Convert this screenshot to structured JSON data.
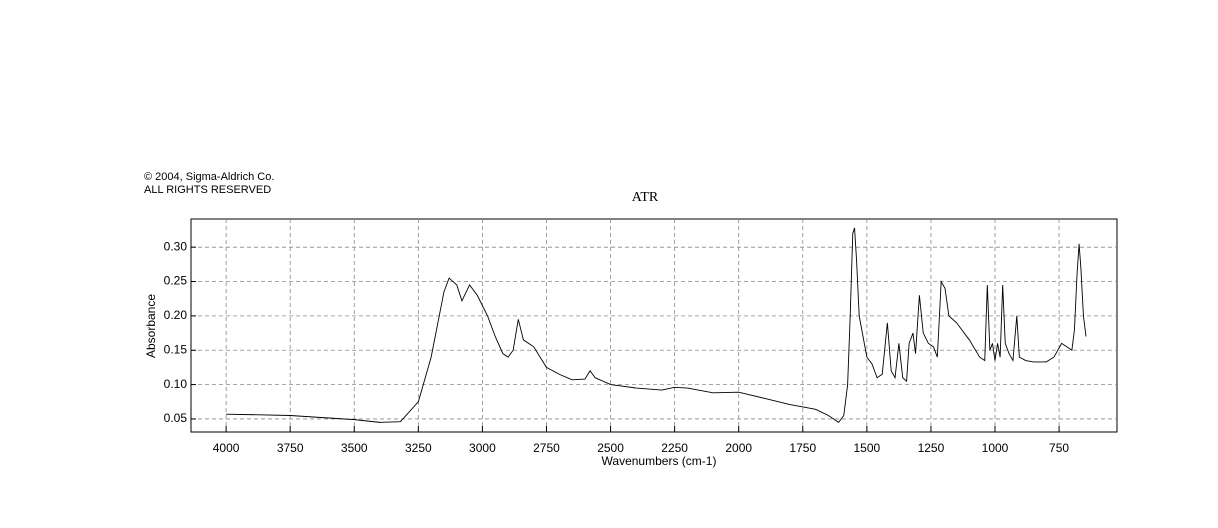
{
  "chart_data": {
    "type": "line",
    "title": "ATR",
    "annotations": [
      "© 2004, Sigma-Aldrich Co.",
      "ALL RIGHTS RESERVED"
    ],
    "x_label": "Wavenumbers (cm-1)",
    "y_label": "Absorbance",
    "xlim": [
      4137,
      524
    ],
    "ylim": [
      0.031,
      0.341
    ],
    "xticks": [
      4000,
      3750,
      3500,
      3250,
      3000,
      2750,
      2500,
      2250,
      2000,
      1750,
      1500,
      1250,
      1000,
      750
    ],
    "yticks": [
      0.05,
      {
        "value": 0.1,
        "label": "0.10"
      },
      0.15,
      {
        "value": 0.2,
        "label": "0.20"
      },
      0.25,
      {
        "value": 0.3,
        "label": "0.30"
      }
    ],
    "grid": true,
    "series": [
      {
        "color": "#000000",
        "x": [
          4000,
          3750,
          3500,
          3400,
          3320,
          3250,
          3200,
          3150,
          3130,
          3100,
          3080,
          3050,
          3020,
          2980,
          2950,
          2920,
          2900,
          2880,
          2860,
          2840,
          2800,
          2750,
          2700,
          2650,
          2600,
          2580,
          2560,
          2500,
          2400,
          2300,
          2250,
          2200,
          2100,
          2000,
          1900,
          1800,
          1700,
          1650,
          1610,
          1590,
          1575,
          1565,
          1555,
          1548,
          1540,
          1530,
          1515,
          1500,
          1490,
          1480,
          1460,
          1440,
          1420,
          1405,
          1390,
          1375,
          1360,
          1345,
          1335,
          1320,
          1310,
          1295,
          1280,
          1260,
          1240,
          1225,
          1210,
          1195,
          1180,
          1150,
          1100,
          1060,
          1040,
          1030,
          1020,
          1010,
          1000,
          990,
          980,
          970,
          960,
          945,
          930,
          915,
          905,
          880,
          850,
          800,
          770,
          740,
          720,
          700,
          690,
          680,
          672,
          665,
          655,
          645
        ],
        "values": [
          0.057,
          0.055,
          0.049,
          0.045,
          0.046,
          0.075,
          0.14,
          0.235,
          0.255,
          0.245,
          0.222,
          0.245,
          0.23,
          0.2,
          0.17,
          0.145,
          0.14,
          0.15,
          0.195,
          0.165,
          0.155,
          0.125,
          0.115,
          0.107,
          0.108,
          0.12,
          0.11,
          0.1,
          0.095,
          0.092,
          0.096,
          0.095,
          0.088,
          0.089,
          0.08,
          0.071,
          0.064,
          0.055,
          0.045,
          0.055,
          0.1,
          0.2,
          0.32,
          0.328,
          0.28,
          0.2,
          0.17,
          0.14,
          0.135,
          0.13,
          0.11,
          0.115,
          0.19,
          0.12,
          0.11,
          0.16,
          0.11,
          0.105,
          0.16,
          0.175,
          0.145,
          0.23,
          0.175,
          0.16,
          0.155,
          0.14,
          0.25,
          0.24,
          0.2,
          0.19,
          0.165,
          0.14,
          0.135,
          0.245,
          0.15,
          0.16,
          0.135,
          0.16,
          0.14,
          0.245,
          0.16,
          0.145,
          0.135,
          0.2,
          0.14,
          0.135,
          0.133,
          0.133,
          0.14,
          0.16,
          0.155,
          0.15,
          0.18,
          0.26,
          0.305,
          0.27,
          0.2,
          0.17
        ]
      }
    ]
  }
}
